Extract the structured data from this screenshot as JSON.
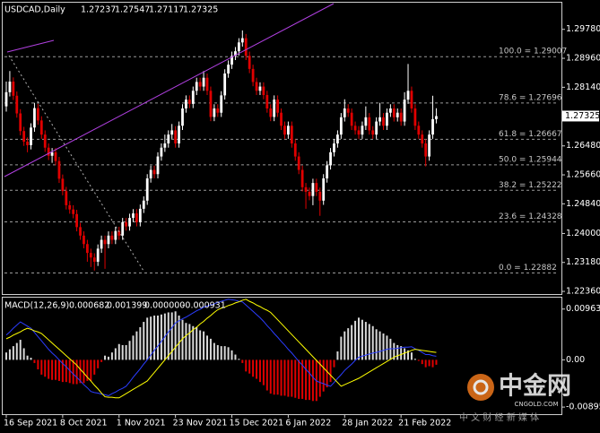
{
  "chart_data": [
    {
      "type": "candlestick",
      "symbol": "USDCAD,Daily",
      "up_color": "#ffffff",
      "down_color": "#e00000",
      "categories": [
        "16 Sep 2021",
        null,
        null,
        null,
        null,
        null,
        null,
        null,
        null,
        null,
        null,
        null,
        null,
        null,
        null,
        null,
        "8 Oct 2021",
        null,
        null,
        null,
        null,
        null,
        null,
        null,
        null,
        null,
        null,
        null,
        null,
        null,
        null,
        null,
        "1 Nov 2021",
        null,
        null,
        null,
        null,
        null,
        null,
        null,
        null,
        null,
        null,
        null,
        null,
        null,
        null,
        null,
        "23 Nov 2021",
        null,
        null,
        null,
        null,
        null,
        null,
        null,
        null,
        null,
        null,
        null,
        null,
        null,
        null,
        null,
        "15 Dec 2021",
        null,
        null,
        null,
        null,
        null,
        null,
        null,
        null,
        null,
        null,
        null,
        null,
        null,
        null,
        null,
        "6 Jan 2022",
        null,
        null,
        null,
        null,
        null,
        null,
        null,
        null,
        null,
        null,
        null,
        null,
        null,
        null,
        null,
        "28 Jan 2022",
        null,
        null,
        null,
        null,
        null,
        null,
        null,
        null,
        null,
        null,
        null,
        null,
        null,
        null,
        null,
        "21 Feb 2022",
        null,
        null,
        null,
        null,
        null,
        null,
        null,
        null,
        null,
        null
      ],
      "open": [
        1.276,
        1.28,
        1.283,
        1.279,
        1.274,
        1.269,
        1.266,
        1.265,
        1.27,
        1.2755,
        1.272,
        1.268,
        1.2643,
        1.262,
        1.263,
        1.2605,
        1.2555,
        1.252,
        1.248,
        1.2468,
        1.2455,
        1.2418,
        1.2394,
        1.237,
        1.2345,
        1.2332,
        1.232,
        1.2357,
        1.2382,
        1.237,
        1.2394,
        1.2382,
        1.2407,
        1.2394,
        1.2432,
        1.242,
        1.2444,
        1.2457,
        1.2432,
        1.247,
        1.2493,
        1.2556,
        1.258,
        1.2568,
        1.2618,
        1.2643,
        1.2655,
        1.268,
        1.2692,
        1.2655,
        1.2705,
        1.2754,
        1.2779,
        1.2767,
        1.2804,
        1.2829,
        1.2816,
        1.2841,
        1.2804,
        1.273,
        1.2754,
        1.2742,
        1.2791,
        1.2853,
        1.2878,
        1.2903,
        1.2916,
        1.2941,
        1.2953,
        1.2903,
        1.2866,
        1.2829,
        1.2804,
        1.2816,
        1.2792,
        1.2754,
        1.273,
        1.2779,
        1.2742,
        1.2705,
        1.268,
        1.2705,
        1.2655,
        1.2618,
        1.258,
        1.2531,
        1.2518,
        1.2506,
        1.2543,
        1.2518,
        1.2493,
        1.2556,
        1.2593,
        1.263,
        1.2655,
        1.268,
        1.2729,
        1.2754,
        1.2742,
        1.2705,
        1.2692,
        1.268,
        1.2705,
        1.2729,
        1.2692,
        1.268,
        1.2717,
        1.2729,
        1.2705,
        1.2742,
        1.2754,
        1.2729,
        1.2742,
        1.2717,
        1.2779,
        1.2804,
        1.2754,
        1.2705,
        1.268,
        1.2655,
        1.2618,
        1.268,
        1.27237
      ],
      "high": [
        1.283,
        1.286,
        1.2842,
        1.2802,
        1.2752,
        1.2702,
        1.2672,
        1.2712,
        1.277,
        1.2767,
        1.2732,
        1.2692,
        1.2655,
        1.2642,
        1.2642,
        1.2617,
        1.2567,
        1.2532,
        1.2492,
        1.248,
        1.2467,
        1.243,
        1.2406,
        1.2382,
        1.2357,
        1.2344,
        1.2369,
        1.2394,
        1.2394,
        1.2406,
        1.2406,
        1.2419,
        1.2419,
        1.2444,
        1.2444,
        1.2456,
        1.2469,
        1.2469,
        1.2482,
        1.2505,
        1.2568,
        1.2592,
        1.2592,
        1.263,
        1.2655,
        1.268,
        1.2692,
        1.271,
        1.2704,
        1.2717,
        1.2766,
        1.2791,
        1.2791,
        1.2816,
        1.2841,
        1.2841,
        1.286,
        1.2853,
        1.2816,
        1.2766,
        1.2766,
        1.2803,
        1.2865,
        1.289,
        1.2915,
        1.2928,
        1.2953,
        1.2975,
        1.2965,
        1.2915,
        1.2878,
        1.2841,
        1.2828,
        1.2828,
        1.2804,
        1.2766,
        1.2791,
        1.2791,
        1.2754,
        1.2717,
        1.2717,
        1.2717,
        1.2667,
        1.263,
        1.2592,
        1.2543,
        1.253,
        1.2555,
        1.2555,
        1.253,
        1.2568,
        1.2605,
        1.2642,
        1.2667,
        1.2692,
        1.2741,
        1.278,
        1.2766,
        1.2754,
        1.2717,
        1.2704,
        1.2717,
        1.276,
        1.2741,
        1.2704,
        1.2729,
        1.277,
        1.2741,
        1.2754,
        1.2766,
        1.2766,
        1.2754,
        1.2754,
        1.28,
        1.288,
        1.2816,
        1.2766,
        1.2717,
        1.2692,
        1.2667,
        1.2692,
        1.279,
        1.27547
      ],
      "low": [
        1.2745,
        1.2788,
        1.2778,
        1.2728,
        1.2678,
        1.2648,
        1.263,
        1.2638,
        1.2688,
        1.2708,
        1.2668,
        1.2631,
        1.2608,
        1.26,
        1.2593,
        1.2543,
        1.2508,
        1.2468,
        1.2456,
        1.2443,
        1.2406,
        1.2382,
        1.2358,
        1.232,
        1.2305,
        1.2295,
        1.2308,
        1.2345,
        1.23,
        1.2358,
        1.237,
        1.237,
        1.2382,
        1.2382,
        1.2408,
        1.2408,
        1.2432,
        1.242,
        1.242,
        1.2458,
        1.2481,
        1.2544,
        1.2556,
        1.2556,
        1.2606,
        1.2631,
        1.2643,
        1.2668,
        1.2643,
        1.2643,
        1.2693,
        1.2742,
        1.2755,
        1.2755,
        1.2792,
        1.2804,
        1.2804,
        1.2792,
        1.2718,
        1.2718,
        1.273,
        1.273,
        1.2779,
        1.2841,
        1.2866,
        1.2891,
        1.2904,
        1.2929,
        1.2891,
        1.2854,
        1.2817,
        1.2792,
        1.2792,
        1.278,
        1.2742,
        1.2718,
        1.2718,
        1.273,
        1.2693,
        1.2668,
        1.2668,
        1.2643,
        1.2606,
        1.2568,
        1.2519,
        1.247,
        1.2494,
        1.248,
        1.2506,
        1.245,
        1.2481,
        1.2544,
        1.2581,
        1.2618,
        1.2643,
        1.2668,
        1.2717,
        1.273,
        1.2693,
        1.268,
        1.2668,
        1.2668,
        1.2693,
        1.268,
        1.2668,
        1.2668,
        1.2705,
        1.2693,
        1.2693,
        1.273,
        1.2717,
        1.2717,
        1.2705,
        1.2705,
        1.2767,
        1.2742,
        1.2693,
        1.2668,
        1.2643,
        1.259,
        1.2606,
        1.2668,
        1.27117
      ],
      "close": [
        1.28,
        1.283,
        1.279,
        1.274,
        1.269,
        1.266,
        1.265,
        1.27,
        1.2755,
        1.272,
        1.268,
        1.2643,
        1.262,
        1.263,
        1.2605,
        1.2555,
        1.252,
        1.248,
        1.2468,
        1.2455,
        1.2418,
        1.2394,
        1.237,
        1.2345,
        1.2332,
        1.232,
        1.2357,
        1.2382,
        1.237,
        1.2394,
        1.2382,
        1.2407,
        1.2394,
        1.2432,
        1.242,
        1.2444,
        1.2457,
        1.2432,
        1.247,
        1.2493,
        1.2556,
        1.258,
        1.2568,
        1.2618,
        1.2643,
        1.2655,
        1.268,
        1.2692,
        1.2655,
        1.2705,
        1.2754,
        1.2779,
        1.2767,
        1.2804,
        1.2829,
        1.2816,
        1.2841,
        1.2804,
        1.273,
        1.2754,
        1.2742,
        1.2791,
        1.2853,
        1.2878,
        1.2903,
        1.2916,
        1.2941,
        1.2953,
        1.2903,
        1.2866,
        1.2829,
        1.2804,
        1.2816,
        1.2792,
        1.2754,
        1.273,
        1.2779,
        1.2742,
        1.2705,
        1.268,
        1.2705,
        1.2655,
        1.2618,
        1.258,
        1.2531,
        1.2518,
        1.2506,
        1.2543,
        1.2518,
        1.2493,
        1.2556,
        1.2593,
        1.263,
        1.2655,
        1.268,
        1.2729,
        1.2754,
        1.2742,
        1.2705,
        1.2692,
        1.268,
        1.2705,
        1.2729,
        1.2692,
        1.268,
        1.2717,
        1.2729,
        1.2705,
        1.2742,
        1.2754,
        1.2729,
        1.2742,
        1.2717,
        1.2779,
        1.2804,
        1.2754,
        1.2705,
        1.268,
        1.2655,
        1.2618,
        1.268,
        1.27237,
        1.27325
      ],
      "ylim": [
        1.22285,
        1.30535
      ],
      "yticks": [
        {
          "value": 1.2978,
          "label": "1.29780"
        },
        {
          "value": 1.2896,
          "label": "1.28960"
        },
        {
          "value": 1.2814,
          "label": "1.28140"
        },
        {
          "value": 1.2648,
          "label": "1.26480"
        },
        {
          "value": 1.2566,
          "label": "1.25660"
        },
        {
          "value": 1.2484,
          "label": "1.24840"
        },
        {
          "value": 1.24,
          "label": "1.24000"
        },
        {
          "value": 1.2318,
          "label": "1.23180"
        },
        {
          "value": 1.2236,
          "label": "1.22360"
        }
      ],
      "fib_levels": [
        {
          "label": "100.0 = 1.29007",
          "value": 1.29007
        },
        {
          "label": "78.6 = 1.27696",
          "value": 1.27696
        },
        {
          "label": "61.8 = 1.26667",
          "value": 1.26667
        },
        {
          "label": "50.0 = 1.25944",
          "value": 1.25944
        },
        {
          "label": "38.2 = 1.25222",
          "value": 1.25222
        },
        {
          "label": "23.6 = 1.24328",
          "value": 1.24328
        },
        {
          "label": "0.0 = 1.22882",
          "value": 1.22882
        }
      ]
    },
    {
      "type": "macd",
      "title": "MACD(12,26,9)",
      "readout": [
        0.000682,
        0.001399,
        {
          "value": 0,
          "label": "0.000000"
        },
        -0.000931
      ],
      "ylim": [
        -0.0103,
        0.0118
      ],
      "yticks": [
        0.009633,
        {
          "value": 0,
          "label": "0.00"
        },
        -0.008955
      ],
      "histogram": {
        "color_up": "#d8d8d8",
        "color_down": "#e00000",
        "values": [
          0.0014,
          0.002,
          0.0026,
          0.0032,
          0.0038,
          0.0022,
          0.0008,
          0.0004,
          -0.0006,
          -0.0018,
          -0.0028,
          -0.0032,
          -0.0036,
          -0.0038,
          -0.0038,
          -0.004,
          -0.0042,
          -0.0042,
          -0.0044,
          -0.0046,
          -0.0046,
          -0.0044,
          -0.0044,
          -0.004,
          -0.004,
          -0.0028,
          -0.0016,
          -0.0004,
          0.0008,
          0.0006,
          0.0014,
          0.0022,
          0.003,
          0.0028,
          0.0028,
          0.0036,
          0.0046,
          0.0054,
          0.0062,
          0.0072,
          0.008,
          0.0082,
          0.0084,
          0.0084,
          0.0086,
          0.0088,
          0.009,
          0.009,
          0.0092,
          0.0084,
          0.0076,
          0.007,
          0.0068,
          0.0064,
          0.0062,
          0.0056,
          0.0054,
          0.0046,
          0.004,
          0.0032,
          0.0028,
          0.0026,
          0.0026,
          0.0024,
          0.0018,
          0.001,
          0.0002,
          -0.0006,
          -0.0022,
          -0.0026,
          -0.0032,
          -0.0036,
          -0.0042,
          -0.0048,
          -0.0058,
          -0.0064,
          -0.0066,
          -0.0066,
          -0.0068,
          -0.0068,
          -0.007,
          -0.007,
          -0.0072,
          -0.0074,
          -0.0074,
          -0.0076,
          -0.0076,
          -0.0078,
          -0.0078,
          -0.007,
          -0.006,
          -0.0052,
          -0.0042,
          -0.0014,
          0.0016,
          0.0044,
          0.0054,
          0.006,
          0.0066,
          0.0074,
          0.008,
          0.0076,
          0.0072,
          0.0068,
          0.0064,
          0.0058,
          0.0054,
          0.005,
          0.0046,
          0.004,
          0.0032,
          0.0028,
          0.0026,
          0.0022,
          0.0018,
          0.0014,
          0.0002,
          -0.0002,
          -0.0008,
          -0.0014,
          -0.0012,
          -0.0014,
          -0.000931
        ]
      },
      "series": [
        {
          "color": "#2b3dff",
          "values": [
            0.0047,
            0.0053,
            0.006,
            0.0066,
            0.0072,
            0.0068,
            0.0064,
            0.006,
            0.0052,
            0.0044,
            0.0036,
            0.0028,
            0.002,
            0.0013,
            0.0007,
            0.0,
            -0.0007,
            -0.0013,
            -0.002,
            -0.0027,
            -0.0033,
            -0.004,
            -0.0047,
            -0.0053,
            -0.006,
            -0.0062,
            -0.0063,
            -0.0065,
            -0.0066,
            -0.0068,
            -0.0064,
            -0.0061,
            -0.0057,
            -0.0054,
            -0.005,
            -0.0042,
            -0.0033,
            -0.0025,
            -0.0017,
            -0.0008,
            0.0,
            0.0009,
            0.0018,
            0.0026,
            0.0035,
            0.0044,
            0.0053,
            0.0061,
            0.007,
            0.0074,
            0.0078,
            0.0081,
            0.0085,
            0.0089,
            0.0093,
            0.0096,
            0.01,
            0.0102,
            0.0104,
            0.0106,
            0.0109,
            0.0111,
            0.0113,
            0.0115,
            0.0114,
            0.0113,
            0.0111,
            0.011,
            0.0104,
            0.0098,
            0.0092,
            0.0086,
            0.008,
            0.0073,
            0.0065,
            0.0058,
            0.005,
            0.0043,
            0.0035,
            0.0028,
            0.002,
            0.0013,
            0.0005,
            -0.0003,
            -0.001,
            -0.0018,
            -0.0025,
            -0.0033,
            -0.004,
            -0.0043,
            -0.0045,
            -0.0048,
            -0.005,
            -0.0043,
            -0.0035,
            -0.0028,
            -0.002,
            -0.0014,
            -0.0008,
            -0.0001,
            0.0005,
            0.0007,
            0.0009,
            0.0011,
            0.0013,
            0.0014,
            0.0016,
            0.0018,
            0.002,
            0.0021,
            0.0021,
            0.0022,
            0.0023,
            0.0024,
            0.0024,
            0.0025,
            0.0021,
            0.0018,
            0.0014,
            0.001,
            0.001,
            0.0008,
            0.000682
          ]
        },
        {
          "color": "#ffff00",
          "values": [
            0.004,
            0.0043,
            0.0047,
            0.005,
            0.0053,
            0.0057,
            0.006,
            0.0058,
            0.0055,
            0.0053,
            0.005,
            0.0044,
            0.0038,
            0.0032,
            0.0026,
            0.002,
            0.0014,
            0.0008,
            0.0002,
            -0.0004,
            -0.001,
            -0.0018,
            -0.0025,
            -0.0033,
            -0.004,
            -0.0048,
            -0.0055,
            -0.0063,
            -0.007,
            -0.0071,
            -0.0071,
            -0.0072,
            -0.0072,
            -0.0068,
            -0.0064,
            -0.006,
            -0.0056,
            -0.0052,
            -0.0048,
            -0.0044,
            -0.004,
            -0.0032,
            -0.0024,
            -0.0016,
            -0.0008,
            0.0,
            0.0008,
            0.0016,
            0.0024,
            0.0032,
            0.004,
            0.0046,
            0.0051,
            0.0057,
            0.0062,
            0.0068,
            0.0073,
            0.0079,
            0.0084,
            0.009,
            0.0095,
            0.0098,
            0.01,
            0.0103,
            0.0105,
            0.0108,
            0.011,
            0.0113,
            0.0115,
            0.0111,
            0.0108,
            0.0104,
            0.0101,
            0.0097,
            0.0094,
            0.009,
            0.0083,
            0.0076,
            0.0069,
            0.0062,
            0.0055,
            0.0048,
            0.0041,
            0.0034,
            0.0027,
            0.002,
            0.0013,
            0.0006,
            -0.0001,
            -0.0008,
            -0.0015,
            -0.0022,
            -0.0029,
            -0.0036,
            -0.0043,
            -0.005,
            -0.0047,
            -0.0044,
            -0.0041,
            -0.0038,
            -0.0035,
            -0.0031,
            -0.0027,
            -0.0023,
            -0.0019,
            -0.0015,
            -0.0011,
            -0.0007,
            -0.0003,
            0.0001,
            0.0005,
            0.0008,
            0.001,
            0.0013,
            0.0015,
            0.0018,
            0.002,
            0.0019,
            0.0018,
            0.0017,
            0.0016,
            0.0015,
            0.001399
          ]
        }
      ]
    }
  ],
  "watermark": {
    "brand": "中金网",
    "domain": "CNGOLD.COM",
    "slogan": "中 文 财 经 新 媒 体"
  }
}
